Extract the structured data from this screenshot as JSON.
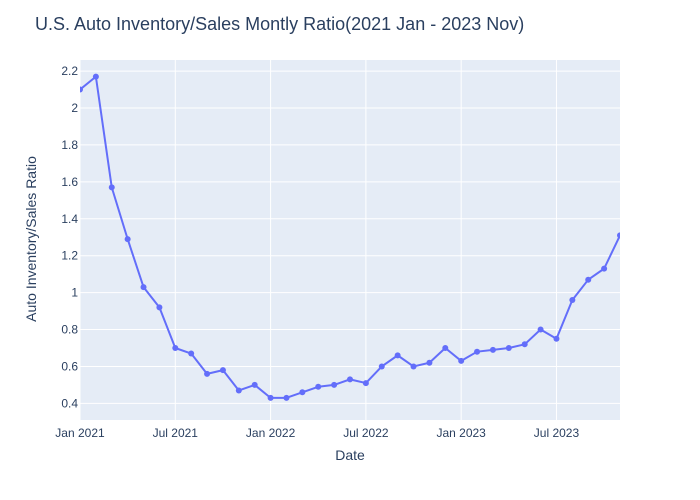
{
  "chart_data": {
    "type": "line",
    "title": "U.S. Auto Inventory/Sales Montly Ratio(2021 Jan - 2023 Nov)",
    "xlabel": "Date",
    "ylabel": "Auto Inventory/Sales Ratio",
    "x_tick_labels": [
      "Jan 2021",
      "Jul 2021",
      "Jan 2022",
      "Jul 2022",
      "Jan 2023",
      "Jul 2023"
    ],
    "y_tick_labels": [
      "0.4",
      "0.6",
      "0.8",
      "1",
      "1.2",
      "1.4",
      "1.6",
      "1.8",
      "2",
      "2.2"
    ],
    "ylim": [
      0.31,
      2.26
    ],
    "xlim": [
      "2021-01",
      "2023-11"
    ],
    "grid": true,
    "series": [
      {
        "x": [
          "2021-01",
          "2021-02",
          "2021-03",
          "2021-04",
          "2021-05",
          "2021-06",
          "2021-07",
          "2021-08",
          "2021-09",
          "2021-10",
          "2021-11",
          "2021-12",
          "2022-01",
          "2022-02",
          "2022-03",
          "2022-04",
          "2022-05",
          "2022-06",
          "2022-07",
          "2022-08",
          "2022-09",
          "2022-10",
          "2022-11",
          "2022-12",
          "2023-01",
          "2023-02",
          "2023-03",
          "2023-04",
          "2023-05",
          "2023-06",
          "2023-07",
          "2023-08",
          "2023-09",
          "2023-10",
          "2023-11"
        ],
        "values": [
          2.1,
          2.17,
          1.57,
          1.29,
          1.03,
          0.92,
          0.7,
          0.67,
          0.56,
          0.58,
          0.47,
          0.5,
          0.43,
          0.43,
          0.46,
          0.49,
          0.5,
          0.53,
          0.51,
          0.6,
          0.66,
          0.6,
          0.62,
          0.7,
          0.63,
          0.68,
          0.69,
          0.7,
          0.72,
          0.8,
          0.75,
          0.96,
          1.07,
          1.13,
          1.31
        ]
      }
    ],
    "colors": {
      "line": "#636efa",
      "plot_bg": "#e5ecf6",
      "grid": "#ffffff",
      "text": "#2a3f5f"
    }
  }
}
